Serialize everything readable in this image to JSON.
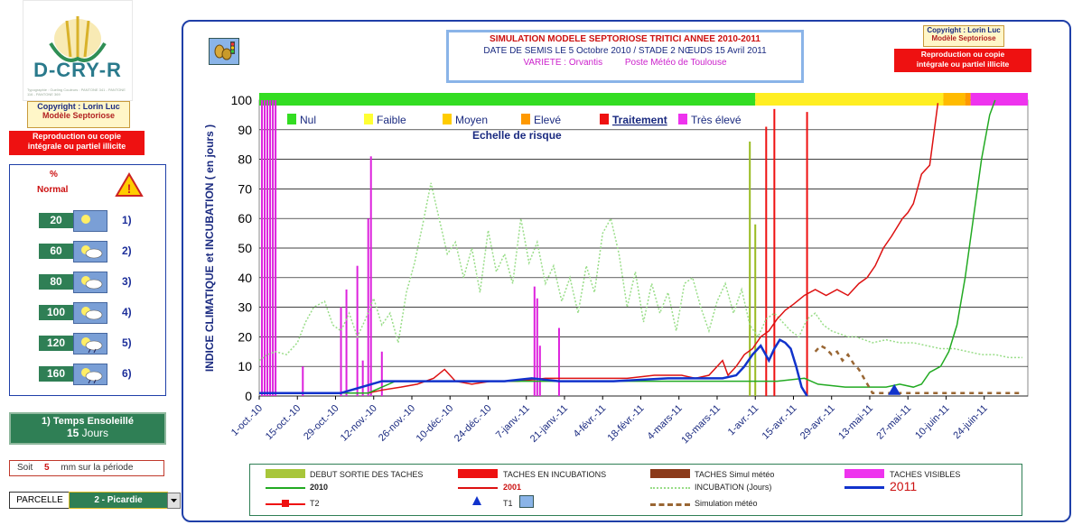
{
  "app": {
    "logo_text": "D-CRY-R",
    "logo_sub": "Typographie : Gueling  Couleurs : PANTONE 341 - PANTONE 116 - PANTONE 369"
  },
  "left": {
    "copyright_line1": "Copyright : Lorin Luc",
    "copyright_line2": "Modèle Septoriose",
    "repro_line1": "Reproduction ou copie",
    "repro_line2": "intégrale ou partiel illicite",
    "panel_header_pct": "%",
    "panel_header_normal": "Normal",
    "rows": [
      {
        "value": "20",
        "index": "1)",
        "icon": "sun-icon"
      },
      {
        "value": "60",
        "index": "2)",
        "icon": "sun-cloud-icon"
      },
      {
        "value": "80",
        "index": "3)",
        "icon": "cloud-icon"
      },
      {
        "value": "100",
        "index": "4)",
        "icon": "sun-cloud-icon"
      },
      {
        "value": "120",
        "index": "5)",
        "icon": "rain-cloud-icon"
      },
      {
        "value": "160",
        "index": "6)",
        "icon": "heavy-rain-icon"
      }
    ],
    "sunny_title": "1) Temps Ensoleillé",
    "sunny_value": "15",
    "sunny_unit": "Jours",
    "soit_prefix": "Soit",
    "soit_value": "5",
    "soit_suffix": "mm sur la période",
    "parcelle_label": "PARCELLE",
    "parcelle_value": "2 - Picardie",
    "accent": "#2f7f55"
  },
  "header": {
    "title_line1": "SIMULATION MODELE SEPTORIOSE TRITICI ANNEE 2010-2011",
    "title_line2": "DATE DE SEMIS LE 5 Octobre 2010 /  STADE 2 NŒUDS 15 Avril 2011",
    "variete": "VARIETE : Orvantis",
    "poste": "Poste Météo de Toulouse",
    "copyright_line1": "Copyright : Lorin Luc",
    "copyright_line2": "Modèle Septoriose",
    "repro_line1": "Reproduction ou copie",
    "repro_line2": "intégrale ou partiel illicite"
  },
  "risk_legend": {
    "items": [
      {
        "label": "Nul",
        "color": "#33dd22"
      },
      {
        "label": "Faible",
        "color": "#ffff33"
      },
      {
        "label": "Moyen",
        "color": "#ffcc00"
      },
      {
        "label": "Elevé",
        "color": "#ff9900"
      },
      {
        "label": "Traitement",
        "color": "#ee1111"
      },
      {
        "label": "Très élevé",
        "color": "#ee33ee"
      }
    ],
    "title": "Echelle de risque"
  },
  "legend": {
    "debut": "DEBUT SORTIE DES TACHES",
    "incub": "TACHES EN INCUBATIONS",
    "simul": "TACHES Simul météo",
    "visibles": "TACHES VISIBLES",
    "y2010": "2010",
    "y2001": "2001",
    "incubation": "INCUBATION (Jours)",
    "y2011": "2011",
    "t2": "T2",
    "t1": "T1",
    "simulation": "Simulation météo"
  },
  "chart_data": {
    "type": "line",
    "ylabel": "INDICE CLIMATIQUE  et  INCUBATION  ( en jours )",
    "ylim": [
      0,
      100
    ],
    "yticks": [
      0,
      10,
      20,
      30,
      40,
      50,
      60,
      70,
      80,
      90,
      100
    ],
    "xlim": [
      "2010-10-01",
      "2011-07-01"
    ],
    "xticks": [
      "1-oct.-10",
      "15-oct.-10",
      "29-oct.-10",
      "12-nov.-10",
      "26-nov.-10",
      "10-déc.-10",
      "24-déc.-10",
      "7-janv.-11",
      "21-janv.-11",
      "4-févr.-11",
      "18-févr.-11",
      "4-mars-11",
      "18-mars-11",
      "1-avr.-11",
      "15-avr.-11",
      "29-avr.-11",
      "13-mai-11",
      "27-mai-11",
      "10-juin-11",
      "24-juin-11"
    ],
    "grid": true,
    "risk_band": [
      {
        "from": 0,
        "to": 182,
        "color": "#33dd22"
      },
      {
        "from": 182,
        "to": 251,
        "color": "#ffee22"
      },
      {
        "from": 251,
        "to": 259,
        "color": "#ffbb00"
      },
      {
        "from": 259,
        "to": 261,
        "color": "#ff9900"
      },
      {
        "from": 261,
        "to": 282,
        "color": "#ee33ee"
      }
    ],
    "series": [
      {
        "name": "INCUBATION (Jours)",
        "color": "#99dd88",
        "style": "dotted",
        "x": [
          0,
          3,
          6,
          10,
          14,
          17,
          20,
          24,
          27,
          30,
          33,
          36,
          39,
          42,
          45,
          48,
          51,
          54,
          57,
          60,
          63,
          66,
          69,
          72,
          75,
          78,
          81,
          84,
          87,
          90,
          93,
          96,
          99,
          102,
          105,
          108,
          111,
          114,
          117,
          120,
          123,
          126,
          129,
          132,
          135,
          138,
          141,
          144,
          147,
          150,
          153,
          156,
          159,
          162,
          165,
          168,
          171,
          174,
          177,
          180,
          183,
          186,
          189,
          192,
          195,
          198,
          201,
          204,
          207,
          210,
          213,
          216,
          219,
          222,
          225,
          230,
          235,
          240,
          245,
          250,
          255,
          260,
          265,
          270,
          275,
          280
        ],
        "y": [
          12,
          14,
          15,
          14,
          18,
          25,
          30,
          32,
          24,
          22,
          28,
          20,
          26,
          33,
          24,
          28,
          18,
          35,
          45,
          58,
          72,
          60,
          48,
          52,
          40,
          50,
          35,
          56,
          42,
          48,
          38,
          60,
          45,
          52,
          38,
          44,
          32,
          40,
          28,
          44,
          35,
          55,
          60,
          48,
          30,
          42,
          25,
          38,
          28,
          35,
          22,
          38,
          40,
          30,
          22,
          32,
          38,
          28,
          36,
          24,
          20,
          26,
          28,
          25,
          22,
          20,
          26,
          28,
          24,
          22,
          21,
          20,
          20,
          19,
          18,
          19,
          18,
          18,
          17,
          16,
          16,
          15,
          14,
          14,
          13,
          13
        ]
      },
      {
        "name": "2001",
        "color": "#dd1111",
        "style": "solid",
        "x": [
          0,
          40,
          45,
          52,
          58,
          64,
          68,
          72,
          78,
          85,
          95,
          105,
          115,
          125,
          135,
          145,
          155,
          160,
          165,
          168,
          170,
          172,
          175,
          178,
          181,
          184,
          187,
          190,
          193,
          196,
          200,
          204,
          208,
          212,
          216,
          220,
          223,
          226,
          229,
          232,
          236,
          238,
          240,
          243,
          246,
          249
        ],
        "y": [
          1,
          1,
          2,
          3,
          4,
          6,
          9,
          5,
          4,
          5,
          5,
          6,
          6,
          6,
          6,
          7,
          7,
          6,
          7,
          10,
          12,
          7,
          10,
          14,
          16,
          20,
          22,
          26,
          29,
          31,
          34,
          36,
          34,
          36,
          34,
          38,
          40,
          44,
          50,
          54,
          60,
          62,
          65,
          75,
          78,
          99
        ]
      },
      {
        "name": "2010",
        "color": "#22aa22",
        "style": "solid",
        "x": [
          0,
          40,
          50,
          60,
          70,
          80,
          100,
          120,
          150,
          170,
          175,
          180,
          190,
          200,
          205,
          215,
          225,
          230,
          235,
          240,
          243,
          246,
          250,
          253,
          256,
          259,
          262,
          265,
          268,
          270
        ],
        "y": [
          1,
          1,
          5,
          5,
          5,
          5,
          5,
          5,
          5,
          5,
          5,
          5,
          5,
          6,
          4,
          3,
          3,
          3,
          4,
          3,
          4,
          8,
          10,
          15,
          24,
          40,
          60,
          80,
          95,
          100
        ]
      },
      {
        "name": "2011",
        "color": "#1133cc",
        "style": "solid",
        "x": [
          0,
          30,
          45,
          60,
          90,
          100,
          110,
          130,
          150,
          170,
          175,
          178,
          181,
          184,
          187,
          189,
          191,
          193,
          195,
          197,
          199,
          201
        ],
        "y": [
          1,
          1,
          5,
          5,
          5,
          6,
          5,
          5,
          6,
          6,
          7,
          10,
          14,
          17,
          12,
          16,
          19,
          18,
          16,
          10,
          3,
          0
        ]
      },
      {
        "name": "Simulation météo",
        "color": "#996633",
        "style": "dashed",
        "x": [
          204,
          206,
          208,
          210,
          212,
          214,
          216,
          218,
          220,
          225,
          235,
          250,
          265,
          280
        ],
        "y": [
          15,
          17,
          16,
          14,
          15,
          12,
          14,
          11,
          9,
          1,
          1,
          1,
          1,
          1
        ]
      }
    ],
    "bars": [
      {
        "name": "TACHES VISIBLES",
        "color": "#dd22dd",
        "x": [
          1,
          2,
          3,
          4,
          5,
          6,
          16,
          30,
          32,
          36,
          38,
          40,
          41,
          45,
          101,
          102,
          103,
          110
        ],
        "y": [
          100,
          100,
          100,
          100,
          100,
          100,
          10,
          30,
          36,
          44,
          12,
          60,
          81,
          15,
          37,
          33,
          17,
          23
        ]
      },
      {
        "name": "TACHES EN INCUBATIONS",
        "color": "#ee1111",
        "x": [
          186,
          189,
          201
        ],
        "y": [
          91,
          97,
          96
        ]
      },
      {
        "name": "DEBUT SORTIE DES TACHES",
        "color": "#99bb22",
        "x": [
          180,
          182
        ],
        "y": [
          86,
          58
        ]
      }
    ],
    "markers": [
      {
        "name": "T1",
        "shape": "triangle",
        "color": "#1133cc",
        "x": 233,
        "y": 1
      }
    ]
  }
}
